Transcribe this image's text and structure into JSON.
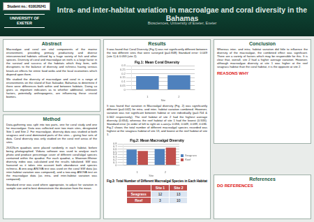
{
  "header": {
    "student": "Student no.: 610026241",
    "logo": "UNIVERSITY OF EXETER",
    "title": "Intra- and inter-habitat variation in macroalgae and coral diversity in the Bahamas",
    "subtitle": "Biosciences, University of Exeter, Exeter"
  },
  "abstract": {
    "heading": "Abstract",
    "paragraphs": [
      "Macroalgae and coral are vital components of the marine environment, providing primary productivity and diverse interconnected habitats utilised by a huge variety of fish and other species. Diversity of coral and macroalgae on reefs is a large factor in the survival and success of the habitats which they form, with disruptions to the balance of diversity and richness having serious knock-on effects for entire food webs and the local economies which depend upon them.",
      "We studied the diversity of macroalgae and coral in a range of environments on the island of San Salvador, Bahamas to determine if there were differences both within and between habitats. Doing so gives us important indicators as to whether additional, unknown factors, potentially anthropogenic, are influencing these crucial biomes."
    ]
  },
  "method": {
    "heading": "Method",
    "paragraphs": [
      "Data-gathering was split into two parts, one for coral study and one for macroalgae. Data was collected over two main sites, designated Site 1 and Site 2. For macroalgae, diversity data was studied at both seagrass and coral dominated parts of the sites – giving four sets of data. Coral diversity was only studied on the coral reef areas of the sites.",
      "25X25cm quadrats were placed randomly in each habitat, before being photographed. Vidana software was used to analyse each photo and produce percentage cover of different coral/algal species contained within the quadrat. For each quadrat, a Shannon-Weiner diversity index was calculated and the results tabulated. SW was favoured as it takes into account both abundance and species richness. A one-way ANOVA test was used on the coral SW data (as inter-habitat variation was compared), and a two-way ANOVA test on the macroalgae data (as intra- and inter-habitat variation was compared).",
      "Standard error was used where appropriate, to adjust for variation in sample size and to best demonstrate the deviation from the mean."
    ]
  },
  "results": {
    "heading": "Results",
    "paragraph_1": "It was found that Coral Diversity (Fig.1) was not significantly different between the two different sites that were surveyed (p=0.848) Standard error: 0.049 (site 1) & 0.053 (site 2).",
    "paragraph_2": "It was found that variation in Macroalgal diversity (Fig. 2) was significantly different (p=0.042) for intra- and inter- habitat variation combined. However, variation was not significant between habitat or site individually (p=0.704 & 0.342 respectively). The reef habitat of site 2 had the highest average diversity (0.654), whereas the reef habitat of site 1 had the lowest (0.533). Standard error (in order of left to right on x-axis)= 0.056, 0.049, 0.039, 0.036. Fig.2 shows the total number of different macroalgal species recorded was highest at the seagrass habitat of site 13, and lowest at the reef habitat of site 1."
  },
  "table": {
    "caption": "Fig.3: Total Number of Different Macroalgal Species in Each Habitat",
    "columns": [
      "Site 1",
      "Site 2"
    ],
    "rows": [
      {
        "label": "Seagrass",
        "values": [
          12,
          13
        ]
      },
      {
        "label": "Reef",
        "values": [
          3,
          10
        ]
      }
    ]
  },
  "conclusion": {
    "heading": "Conclusion",
    "paragraph": "Whereas inter- and intra- habitat variation did little to influence the diversity of the macroalgae, the combined effect was significant. There are a variety of factors which may be responsible for this. It is clear that, overall, site 2 had a higher average variation. However, although macroalgae diversity at site 1 was higher at the reef seagrass habitat than the coral habitat, it is the opposite at site 2.",
    "note": "REASONS WHY"
  },
  "references": {
    "heading": "References",
    "note": "DO REFERENCES"
  },
  "chart_data": [
    {
      "type": "bar",
      "title": "Fig.1: Mean Coral Diversity",
      "x_label": "Site",
      "categories": [
        "1",
        "2"
      ],
      "values": [
        0.17,
        0.18
      ],
      "color": "#4f81bd",
      "ylim": [
        0,
        0.3
      ],
      "yticks": [
        0,
        0.05,
        0.1,
        0.15,
        0.2,
        0.25,
        0.3
      ],
      "grid": true
    },
    {
      "type": "bar",
      "title": "Fig.2: Mean Macroalgal Diversity",
      "x_label": "Site",
      "categories": [
        "1",
        "2"
      ],
      "series": [
        {
          "name": "Seagrass",
          "color": "#4f81bd",
          "values": [
            0.58,
            0.6
          ]
        },
        {
          "name": "Reef",
          "color": "#c0504d",
          "values": [
            0.533,
            0.654
          ]
        }
      ],
      "ylim": [
        0,
        0.8
      ],
      "yticks": [
        0,
        0.1,
        0.2,
        0.3,
        0.4,
        0.5,
        0.6,
        0.7,
        0.8
      ],
      "grid": true,
      "legend": "right"
    }
  ]
}
